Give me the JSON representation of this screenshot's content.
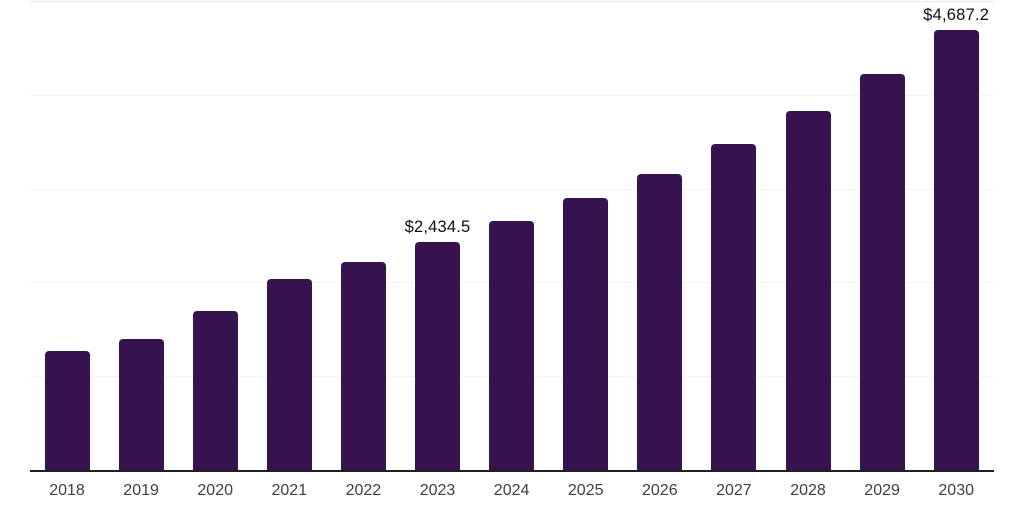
{
  "chart_data": {
    "type": "bar",
    "title": "",
    "xlabel": "",
    "ylabel": "",
    "categories": [
      "2018",
      "2019",
      "2020",
      "2021",
      "2022",
      "2023",
      "2024",
      "2025",
      "2026",
      "2027",
      "2028",
      "2029",
      "2030"
    ],
    "values": [
      1265,
      1400,
      1690,
      2040,
      2220,
      2434.5,
      2660,
      2905,
      3160,
      3480,
      3830,
      4225,
      4687.2
    ],
    "value_labels": [
      "",
      "",
      "",
      "",
      "",
      "$2,434.5",
      "",
      "",
      "",
      "",
      "",
      "",
      "$4,687.2"
    ],
    "labeled_points_note": "Only 2023 and 2030 bars show data labels in the chart",
    "ylim": [
      0,
      5000
    ],
    "gridline_values": [
      1000,
      2000,
      3000,
      4000,
      5000
    ],
    "grid": "horizontal-only, no y-axis tick labels",
    "legend": "none",
    "colors": {
      "bar": "#36124e",
      "gridline": "#f3f3f3",
      "top_gridline": "#e8e8e8",
      "axis_line": "#1f1f1f",
      "tick_label": "#404040",
      "value_label": "#101010",
      "background": "#ffffff"
    }
  }
}
